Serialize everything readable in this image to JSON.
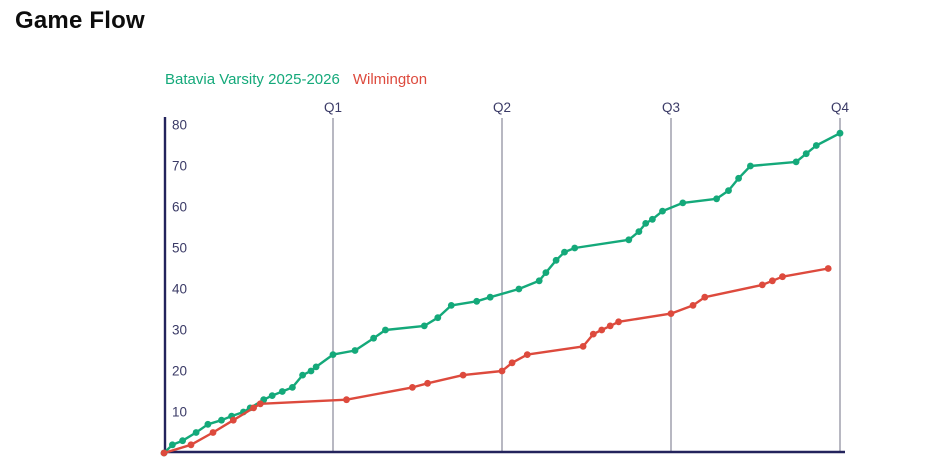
{
  "page": {
    "title": "Game Flow"
  },
  "colors": {
    "background": "#ffffff",
    "axis_line": "#23235c",
    "axis_text": "#3a3a66",
    "gridline": "#9a9aa8",
    "batavia_green": "#14a97a",
    "wilmington_red": "#dd4a3d",
    "title_text": "#0d0d0d"
  },
  "chart_data": {
    "type": "line",
    "title": "Game Flow",
    "xlabel": "",
    "ylabel": "",
    "x_unit": "quarters",
    "xlim": [
      0,
      4
    ],
    "ylim": [
      0,
      80
    ],
    "y_ticks": [
      10,
      20,
      30,
      40,
      50,
      60,
      70,
      80
    ],
    "x_labels": [
      "Q1",
      "Q2",
      "Q3",
      "Q4"
    ],
    "x_gridlines_at": [
      1,
      2,
      3,
      4
    ],
    "grid": "vertical-quarter-lines-only",
    "legend_position": "top-left",
    "series": [
      {
        "name": "Batavia Varsity 2025-2026",
        "key": "batavia",
        "color": "#14a97a",
        "points": [
          [
            0,
            0
          ],
          [
            0.05,
            2
          ],
          [
            0.11,
            3
          ],
          [
            0.19,
            5
          ],
          [
            0.26,
            7
          ],
          [
            0.34,
            8
          ],
          [
            0.4,
            9
          ],
          [
            0.47,
            10
          ],
          [
            0.51,
            11
          ],
          [
            0.59,
            13
          ],
          [
            0.64,
            14
          ],
          [
            0.7,
            15
          ],
          [
            0.76,
            16
          ],
          [
            0.82,
            19
          ],
          [
            0.87,
            20
          ],
          [
            0.9,
            21
          ],
          [
            1,
            24
          ],
          [
            1.13,
            25
          ],
          [
            1.24,
            28
          ],
          [
            1.31,
            30
          ],
          [
            1.54,
            31
          ],
          [
            1.62,
            33
          ],
          [
            1.7,
            36
          ],
          [
            1.85,
            37
          ],
          [
            1.93,
            38
          ],
          [
            2.1,
            40
          ],
          [
            2.22,
            42
          ],
          [
            2.26,
            44
          ],
          [
            2.32,
            47
          ],
          [
            2.37,
            49
          ],
          [
            2.43,
            50
          ],
          [
            2.75,
            52
          ],
          [
            2.81,
            54
          ],
          [
            2.85,
            56
          ],
          [
            2.89,
            57
          ],
          [
            2.95,
            59
          ],
          [
            3.07,
            61
          ],
          [
            3.27,
            62
          ],
          [
            3.34,
            64
          ],
          [
            3.4,
            67
          ],
          [
            3.47,
            70
          ],
          [
            3.74,
            71
          ],
          [
            3.8,
            73
          ],
          [
            3.86,
            75
          ],
          [
            4,
            78
          ]
        ]
      },
      {
        "name": "Wilmington",
        "key": "wilmington",
        "color": "#dd4a3d",
        "points": [
          [
            0,
            0
          ],
          [
            0.16,
            2
          ],
          [
            0.29,
            5
          ],
          [
            0.41,
            8
          ],
          [
            0.53,
            11
          ],
          [
            0.57,
            12
          ],
          [
            1.08,
            13
          ],
          [
            1.47,
            16
          ],
          [
            1.56,
            17
          ],
          [
            1.77,
            19
          ],
          [
            2,
            20
          ],
          [
            2.06,
            22
          ],
          [
            2.15,
            24
          ],
          [
            2.48,
            26
          ],
          [
            2.54,
            29
          ],
          [
            2.59,
            30
          ],
          [
            2.64,
            31
          ],
          [
            2.69,
            32
          ],
          [
            3,
            34
          ],
          [
            3.13,
            36
          ],
          [
            3.2,
            38
          ],
          [
            3.54,
            41
          ],
          [
            3.6,
            42
          ],
          [
            3.66,
            43
          ],
          [
            3.93,
            45
          ]
        ]
      }
    ]
  }
}
